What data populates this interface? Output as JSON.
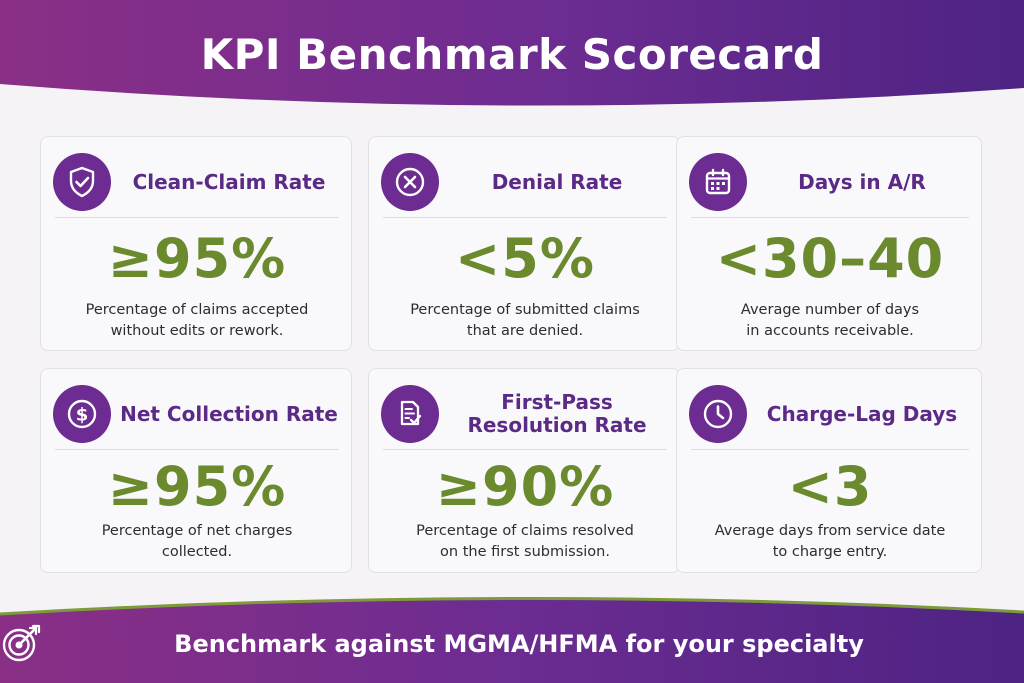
{
  "title": "KPI Benchmark Scorecard",
  "colors": {
    "purple_dark": "#4d2383",
    "purple": "#6c2c91",
    "magenta": "#8a2f86",
    "green": "#6b8a2e",
    "title_purple": "#5b2a86"
  },
  "cards": [
    {
      "icon": "shield-check-icon",
      "title": "Clean-Claim Rate",
      "metric": "≥95%",
      "desc_line1": "Percentage of claims accepted",
      "desc_line2": "without edits or rework."
    },
    {
      "icon": "x-circle-icon",
      "title": "Denial Rate",
      "metric": "<5%",
      "desc_line1": "Percentage of submitted claims",
      "desc_line2": "that are denied."
    },
    {
      "icon": "calendar-icon",
      "title": "Days in A/R",
      "metric": "<30–40",
      "desc_line1": "Average number of days",
      "desc_line2": "in accounts receivable."
    },
    {
      "icon": "dollar-icon",
      "title": "Net Collection Rate",
      "metric": "≥95%",
      "desc_line1": "Percentage of net charges",
      "desc_line2": "collected."
    },
    {
      "icon": "document-check-icon",
      "title_line1": "First-Pass",
      "title_line2": "Resolution Rate",
      "metric": "≥90%",
      "desc_line1": "Percentage of claims resolved",
      "desc_line2": "on the first submission."
    },
    {
      "icon": "clock-icon",
      "title": "Charge-Lag Days",
      "metric": "<3",
      "desc_line1": "Average days from service date",
      "desc_line2": "to charge entry."
    }
  ],
  "footer": {
    "icon": "target-arrow-icon",
    "text": "Benchmark against MGMA/HFMA for your specialty"
  }
}
